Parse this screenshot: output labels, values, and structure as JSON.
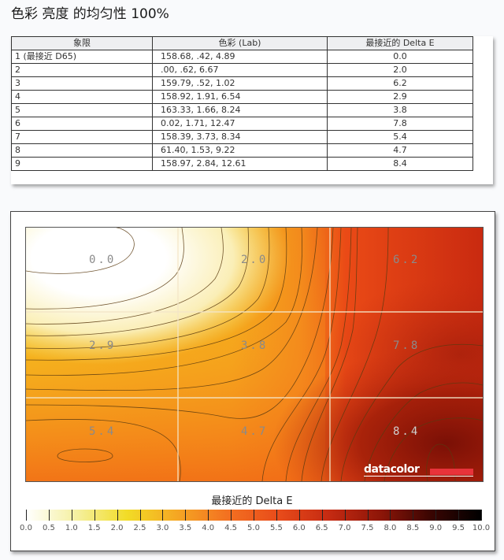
{
  "page": {
    "title": "色彩 亮度 的均匀性 100%"
  },
  "table": {
    "headers": [
      "象限",
      "色彩 (Lab)",
      "最接近的 Delta E"
    ],
    "rows": [
      [
        "1 (最接近 D65)",
        "158.68,  .42,  4.89",
        "0.0"
      ],
      [
        "2",
        " .00,  .62,  6.67",
        "2.0"
      ],
      [
        "3",
        "159.79,  .52,  1.02",
        "6.2"
      ],
      [
        "4",
        "158.92,  1.91,  6.54",
        "2.9"
      ],
      [
        "5",
        "163.33,  1.66,  8.24",
        "3.8"
      ],
      [
        "6",
        " 0.02,  1.71,  12.47",
        "7.8"
      ],
      [
        "7",
        "158.39,  3.73,  8.34",
        "5.4"
      ],
      [
        "8",
        " 61.40,  1.53,  9.22",
        "4.7"
      ],
      [
        "9",
        "158.97,  2.84,  12.61",
        "8.4"
      ]
    ]
  },
  "chart_data": {
    "type": "heatmap",
    "title": "色彩 亮度 的均匀性 100%",
    "grid": {
      "rows": 3,
      "cols": 3
    },
    "values": [
      [
        0.0,
        2.0,
        6.2
      ],
      [
        2.9,
        3.8,
        7.8
      ],
      [
        5.4,
        4.7,
        8.4
      ]
    ],
    "cell_labels": [
      "0.0",
      "2.0",
      "6.2",
      "2.9",
      "3.8",
      "7.8",
      "5.4",
      "4.7",
      "8.4"
    ],
    "contour_lines": true,
    "colorbar": {
      "label": "最接近的 Delta E",
      "range": [
        0,
        10
      ],
      "ticks": [
        "0.0",
        "0.5",
        "1.0",
        "1.5",
        "2.0",
        "2.5",
        "3.0",
        "3.5",
        "4.0",
        "4.5",
        "5.0",
        "5.5",
        "6.0",
        "6.5",
        "7.0",
        "7.5",
        "8.0",
        "8.5",
        "9.0",
        "9.5",
        "10.0"
      ],
      "colors": [
        "#ffffff",
        "#f5f0a0",
        "#f2dc26",
        "#f5a623",
        "#f37021",
        "#e84b1a",
        "#c52a12",
        "#8e1608",
        "#3a0502",
        "#000000"
      ]
    },
    "brand": "datacolor"
  },
  "legend": {
    "title": "最接近的 Delta E"
  },
  "logo": {
    "text": "datacolor",
    "accent": "#e8333a"
  }
}
